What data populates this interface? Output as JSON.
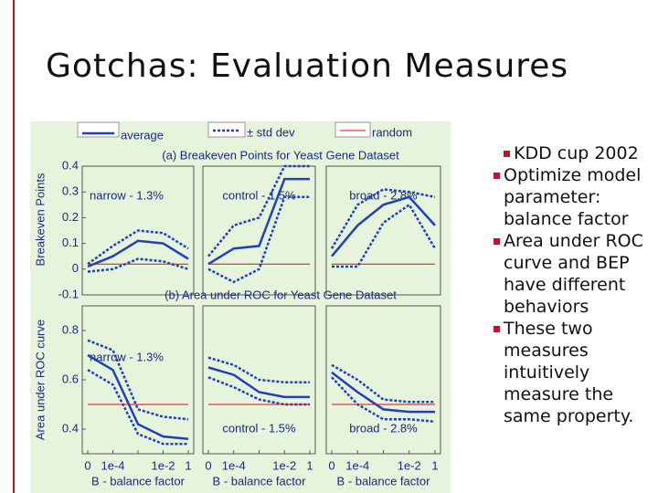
{
  "title": "Gotchas: Evaluation Measures",
  "bullets": [
    "KDD cup 2002",
    "Optimize model parameter: balance factor",
    "Area under ROC curve and BEP have different behaviors",
    "These two measures intuitively measure the same property."
  ],
  "chart_data": [
    {
      "type": "line",
      "title": "(a) Breakeven Points for Yeast Gene Dataset",
      "ylabel": "Breakeven Points",
      "annotation": "narrow - 1.3%",
      "ylim": [
        -0.1,
        0.4
      ],
      "yticks": [
        -0.1,
        0,
        0.1,
        0.2,
        0.3,
        0.4
      ],
      "series": [
        {
          "name": "average",
          "color": "#1f3fbf",
          "style": "solid",
          "values": [
            0.01,
            0.05,
            0.11,
            0.1,
            0.04
          ]
        },
        {
          "name": "± std dev",
          "color": "#1f3fbf",
          "style": "dotted",
          "values": [
            0.02,
            0.09,
            0.15,
            0.14,
            0.08
          ]
        },
        {
          "color": "#1f3fbf",
          "style": "dotted",
          "values": [
            -0.01,
            0.0,
            0.04,
            0.03,
            0.0
          ]
        },
        {
          "name": "random",
          "color": "#d01010",
          "style": "thin",
          "values": [
            0.02,
            0.02,
            0.02,
            0.02,
            0.02
          ]
        }
      ]
    },
    {
      "type": "line",
      "annotation": "control - 1.5%",
      "ylim": [
        -0.1,
        0.4
      ],
      "series": [
        {
          "color": "#1f3fbf",
          "style": "solid",
          "values": [
            0.02,
            0.08,
            0.09,
            0.35,
            0.35
          ]
        },
        {
          "color": "#1f3fbf",
          "style": "dotted",
          "values": [
            0.05,
            0.17,
            0.2,
            0.4,
            0.4
          ]
        },
        {
          "color": "#1f3fbf",
          "style": "dotted",
          "values": [
            0.0,
            -0.05,
            0.0,
            0.28,
            0.28
          ]
        },
        {
          "color": "#d01010",
          "style": "thin",
          "values": [
            0.02,
            0.02,
            0.02,
            0.02,
            0.02
          ]
        }
      ]
    },
    {
      "type": "line",
      "annotation": "broad - 2.8%",
      "ylim": [
        -0.1,
        0.4
      ],
      "series": [
        {
          "color": "#1f3fbf",
          "style": "solid",
          "values": [
            0.05,
            0.17,
            0.25,
            0.28,
            0.17
          ]
        },
        {
          "color": "#1f3fbf",
          "style": "dotted",
          "values": [
            0.08,
            0.25,
            0.31,
            0.3,
            0.28
          ]
        },
        {
          "color": "#1f3fbf",
          "style": "dotted",
          "values": [
            0.01,
            0.01,
            0.18,
            0.25,
            0.08
          ]
        },
        {
          "color": "#d01010",
          "style": "thin",
          "values": [
            0.02,
            0.02,
            0.02,
            0.02,
            0.02
          ]
        }
      ]
    },
    {
      "type": "line",
      "title": "(b) Area under ROC for Yeast Gene Dataset",
      "ylabel": "Area under ROC curve",
      "annotation": "narrow - 1.3%",
      "xlabel": "B - balance factor",
      "categories": [
        "0",
        "1e-4",
        null,
        "1e-2",
        "1"
      ],
      "ylim": [
        0.3,
        0.9
      ],
      "yticks": [
        0.4,
        0.6,
        0.8
      ],
      "series": [
        {
          "color": "#1f3fbf",
          "style": "solid",
          "values": [
            0.7,
            0.64,
            0.42,
            0.37,
            0.36
          ]
        },
        {
          "color": "#1f3fbf",
          "style": "dotted",
          "values": [
            0.76,
            0.72,
            0.48,
            0.45,
            0.44
          ]
        },
        {
          "color": "#1f3fbf",
          "style": "dotted",
          "values": [
            0.64,
            0.58,
            0.38,
            0.34,
            0.34
          ]
        },
        {
          "color": "#d01010",
          "style": "thin",
          "values": [
            0.5,
            0.5,
            0.5,
            0.5,
            0.5
          ]
        }
      ]
    },
    {
      "type": "line",
      "annotation": "control - 1.5%",
      "xlabel": "B - balance factor",
      "categories": [
        "0",
        "1e-4",
        null,
        "1e-2",
        "1"
      ],
      "ylim": [
        0.3,
        0.9
      ],
      "series": [
        {
          "color": "#1f3fbf",
          "style": "solid",
          "values": [
            0.65,
            0.62,
            0.55,
            0.53,
            0.53
          ]
        },
        {
          "color": "#1f3fbf",
          "style": "dotted",
          "values": [
            0.69,
            0.66,
            0.6,
            0.59,
            0.59
          ]
        },
        {
          "color": "#1f3fbf",
          "style": "dotted",
          "values": [
            0.61,
            0.57,
            0.52,
            0.5,
            0.5
          ]
        },
        {
          "color": "#d01010",
          "style": "thin",
          "values": [
            0.5,
            0.5,
            0.5,
            0.5,
            0.5
          ]
        }
      ]
    },
    {
      "type": "line",
      "annotation": "broad - 2.8%",
      "xlabel": "B - balance factor",
      "categories": [
        "0",
        "1e-4",
        null,
        "1e-2",
        "1"
      ],
      "ylim": [
        0.3,
        0.9
      ],
      "series": [
        {
          "color": "#1f3fbf",
          "style": "solid",
          "values": [
            0.63,
            0.55,
            0.48,
            0.47,
            0.47
          ]
        },
        {
          "color": "#1f3fbf",
          "style": "dotted",
          "values": [
            0.66,
            0.6,
            0.52,
            0.51,
            0.51
          ]
        },
        {
          "color": "#1f3fbf",
          "style": "dotted",
          "values": [
            0.61,
            0.5,
            0.44,
            0.44,
            0.43
          ]
        },
        {
          "color": "#d01010",
          "style": "thin",
          "values": [
            0.5,
            0.5,
            0.5,
            0.5,
            0.5
          ]
        }
      ]
    }
  ]
}
